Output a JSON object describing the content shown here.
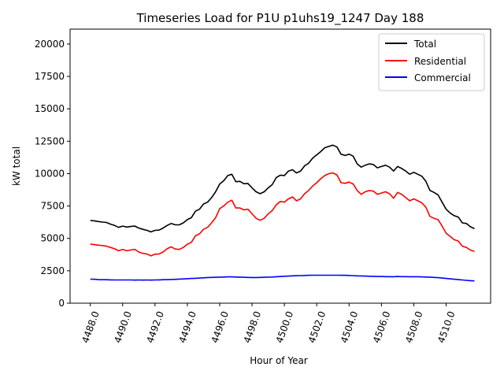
{
  "chart_data": {
    "type": "line",
    "title": "Timeseries Load for P1U p1uhs19_1247  Day 188",
    "xlabel": "Hour of Year",
    "ylabel": "kW total",
    "xlim": [
      4486.75,
      4512.75
    ],
    "ylim": [
      0,
      21150
    ],
    "x_ticks": [
      4488,
      4490,
      4492,
      4494,
      4496,
      4498,
      4500,
      4502,
      4504,
      4506,
      4508,
      4510
    ],
    "x_tick_labels": [
      "4488.0",
      "4490.0",
      "4492.0",
      "4494.0",
      "4496.0",
      "4498.0",
      "4500.0",
      "4502.0",
      "4504.0",
      "4506.0",
      "4508.0",
      "4510.0"
    ],
    "y_ticks": [
      0,
      2500,
      5000,
      7500,
      10000,
      12500,
      15000,
      17500,
      20000
    ],
    "y_tick_labels": [
      "0",
      "2500",
      "5000",
      "7500",
      "10000",
      "12500",
      "15000",
      "17500",
      "20000"
    ],
    "legend_position": "top-right",
    "grid": false,
    "x_start": 4488,
    "x_step": 0.25,
    "series": [
      {
        "name": "Total",
        "color": "#000000",
        "values": [
          6380,
          6360,
          6300,
          6260,
          6230,
          6100,
          6000,
          5850,
          5950,
          5880,
          5920,
          5950,
          5800,
          5700,
          5620,
          5500,
          5620,
          5640,
          5800,
          6000,
          6150,
          6050,
          6050,
          6200,
          6450,
          6600,
          7100,
          7250,
          7650,
          7800,
          8150,
          8600,
          9200,
          9450,
          9850,
          9950,
          9380,
          9400,
          9220,
          9230,
          8900,
          8600,
          8450,
          8600,
          8900,
          9150,
          9700,
          9880,
          9850,
          10200,
          10300,
          10050,
          10200,
          10600,
          10800,
          11200,
          11450,
          11700,
          12000,
          12100,
          12200,
          12050,
          11500,
          11400,
          11500,
          11350,
          10750,
          10500,
          10650,
          10750,
          10700,
          10450,
          10550,
          10650,
          10500,
          10200,
          10550,
          10400,
          10200,
          9950,
          10100,
          9950,
          9800,
          9400,
          8700,
          8550,
          8350,
          7800,
          7250,
          6950,
          6750,
          6650,
          6200,
          6150,
          5900,
          5750
        ]
      },
      {
        "name": "Residential",
        "color": "#ff0000",
        "values": [
          4550,
          4520,
          4480,
          4450,
          4400,
          4300,
          4200,
          4050,
          4150,
          4050,
          4100,
          4150,
          3950,
          3850,
          3800,
          3650,
          3780,
          3800,
          3950,
          4200,
          4350,
          4180,
          4150,
          4300,
          4550,
          4700,
          5200,
          5350,
          5700,
          5850,
          6200,
          6600,
          7300,
          7500,
          7800,
          7950,
          7350,
          7350,
          7200,
          7250,
          6900,
          6550,
          6400,
          6550,
          6900,
          7150,
          7600,
          7850,
          7800,
          8050,
          8200,
          7900,
          8050,
          8450,
          8700,
          9050,
          9300,
          9600,
          9850,
          10000,
          10050,
          9900,
          9300,
          9250,
          9350,
          9200,
          8700,
          8400,
          8600,
          8700,
          8650,
          8400,
          8500,
          8600,
          8450,
          8100,
          8550,
          8400,
          8150,
          7900,
          8050,
          7900,
          7750,
          7400,
          6700,
          6550,
          6450,
          5950,
          5400,
          5150,
          4900,
          4800,
          4400,
          4300,
          4100,
          4000
        ]
      },
      {
        "name": "Commercial",
        "color": "#0000ff",
        "values": [
          1850,
          1850,
          1820,
          1810,
          1810,
          1800,
          1790,
          1790,
          1790,
          1790,
          1790,
          1780,
          1790,
          1780,
          1790,
          1780,
          1790,
          1800,
          1810,
          1820,
          1830,
          1840,
          1860,
          1870,
          1890,
          1910,
          1920,
          1940,
          1960,
          1980,
          1990,
          2000,
          2010,
          2020,
          2030,
          2030,
          2020,
          2010,
          2000,
          1990,
          1980,
          1980,
          1990,
          2000,
          2010,
          2020,
          2040,
          2060,
          2080,
          2090,
          2110,
          2120,
          2130,
          2140,
          2150,
          2160,
          2160,
          2160,
          2160,
          2160,
          2160,
          2160,
          2150,
          2150,
          2140,
          2130,
          2110,
          2100,
          2090,
          2080,
          2070,
          2060,
          2060,
          2050,
          2050,
          2040,
          2060,
          2050,
          2050,
          2040,
          2040,
          2040,
          2030,
          2020,
          2010,
          1990,
          1970,
          1940,
          1910,
          1880,
          1850,
          1820,
          1790,
          1760,
          1740,
          1720
        ]
      }
    ]
  }
}
